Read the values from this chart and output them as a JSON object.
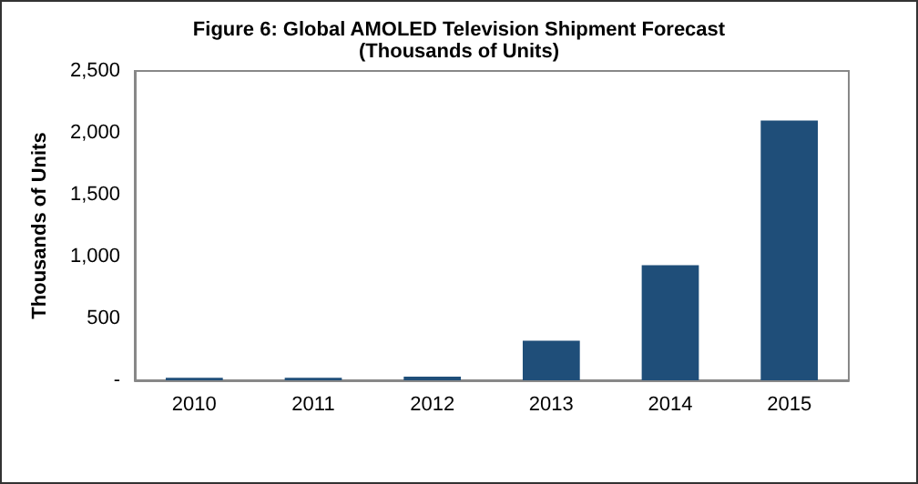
{
  "chart_data": {
    "type": "bar",
    "title": "Figure 6: Global AMOLED Television Shipment Forecast",
    "subtitle": "(Thousands of Units)",
    "ylabel": "Thousands of Units",
    "categories": [
      "2010",
      "2011",
      "2012",
      "2013",
      "2014",
      "2015"
    ],
    "values": [
      20,
      20,
      30,
      320,
      930,
      2100
    ],
    "color": "#1f4e79",
    "ylim": [
      0,
      2500
    ],
    "yticks": [
      {
        "value": 0,
        "label": "-"
      },
      500,
      {
        "value": 1000,
        "label": "1,000"
      },
      {
        "value": 1500,
        "label": "1,500"
      },
      {
        "value": 2000,
        "label": "2,000"
      },
      {
        "value": 2500,
        "label": "2,500"
      }
    ],
    "grid": false
  }
}
